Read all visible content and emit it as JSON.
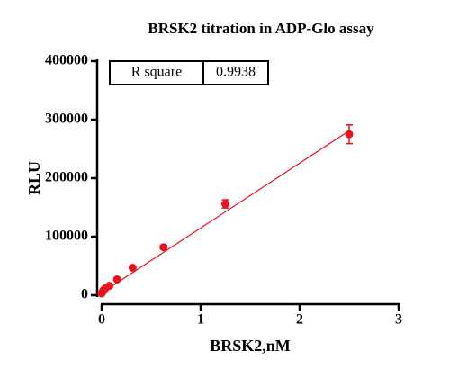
{
  "chart_data": {
    "type": "scatter",
    "title": "BRSK2 titration in ADP-Glo assay",
    "x_label": "BRSK2,nM",
    "y_label": "RLU",
    "x": [
      0,
      0.0098,
      0.0195,
      0.039,
      0.078,
      0.156,
      0.3125,
      0.625,
      1.25,
      2.5
    ],
    "series": [
      {
        "name": "BRSK2",
        "color": "#e8141b",
        "values": [
          3000,
          6000,
          9000,
          12000,
          16000,
          27000,
          47000,
          82000,
          156000,
          275000
        ],
        "errors": [
          0,
          0,
          0,
          0,
          0,
          2000,
          2000,
          3000,
          7000,
          16000
        ]
      }
    ],
    "fit": {
      "x": [
        0,
        2.5
      ],
      "y": [
        4000,
        281000
      ],
      "color": "#e8141b"
    },
    "annotation_table": [
      "R square",
      "0.9938"
    ],
    "xlim": [
      0,
      3
    ],
    "xticks": [
      0,
      1,
      2,
      3
    ],
    "ylim": [
      0,
      400000
    ],
    "yticks": [
      0,
      100000,
      200000,
      300000,
      400000
    ]
  }
}
